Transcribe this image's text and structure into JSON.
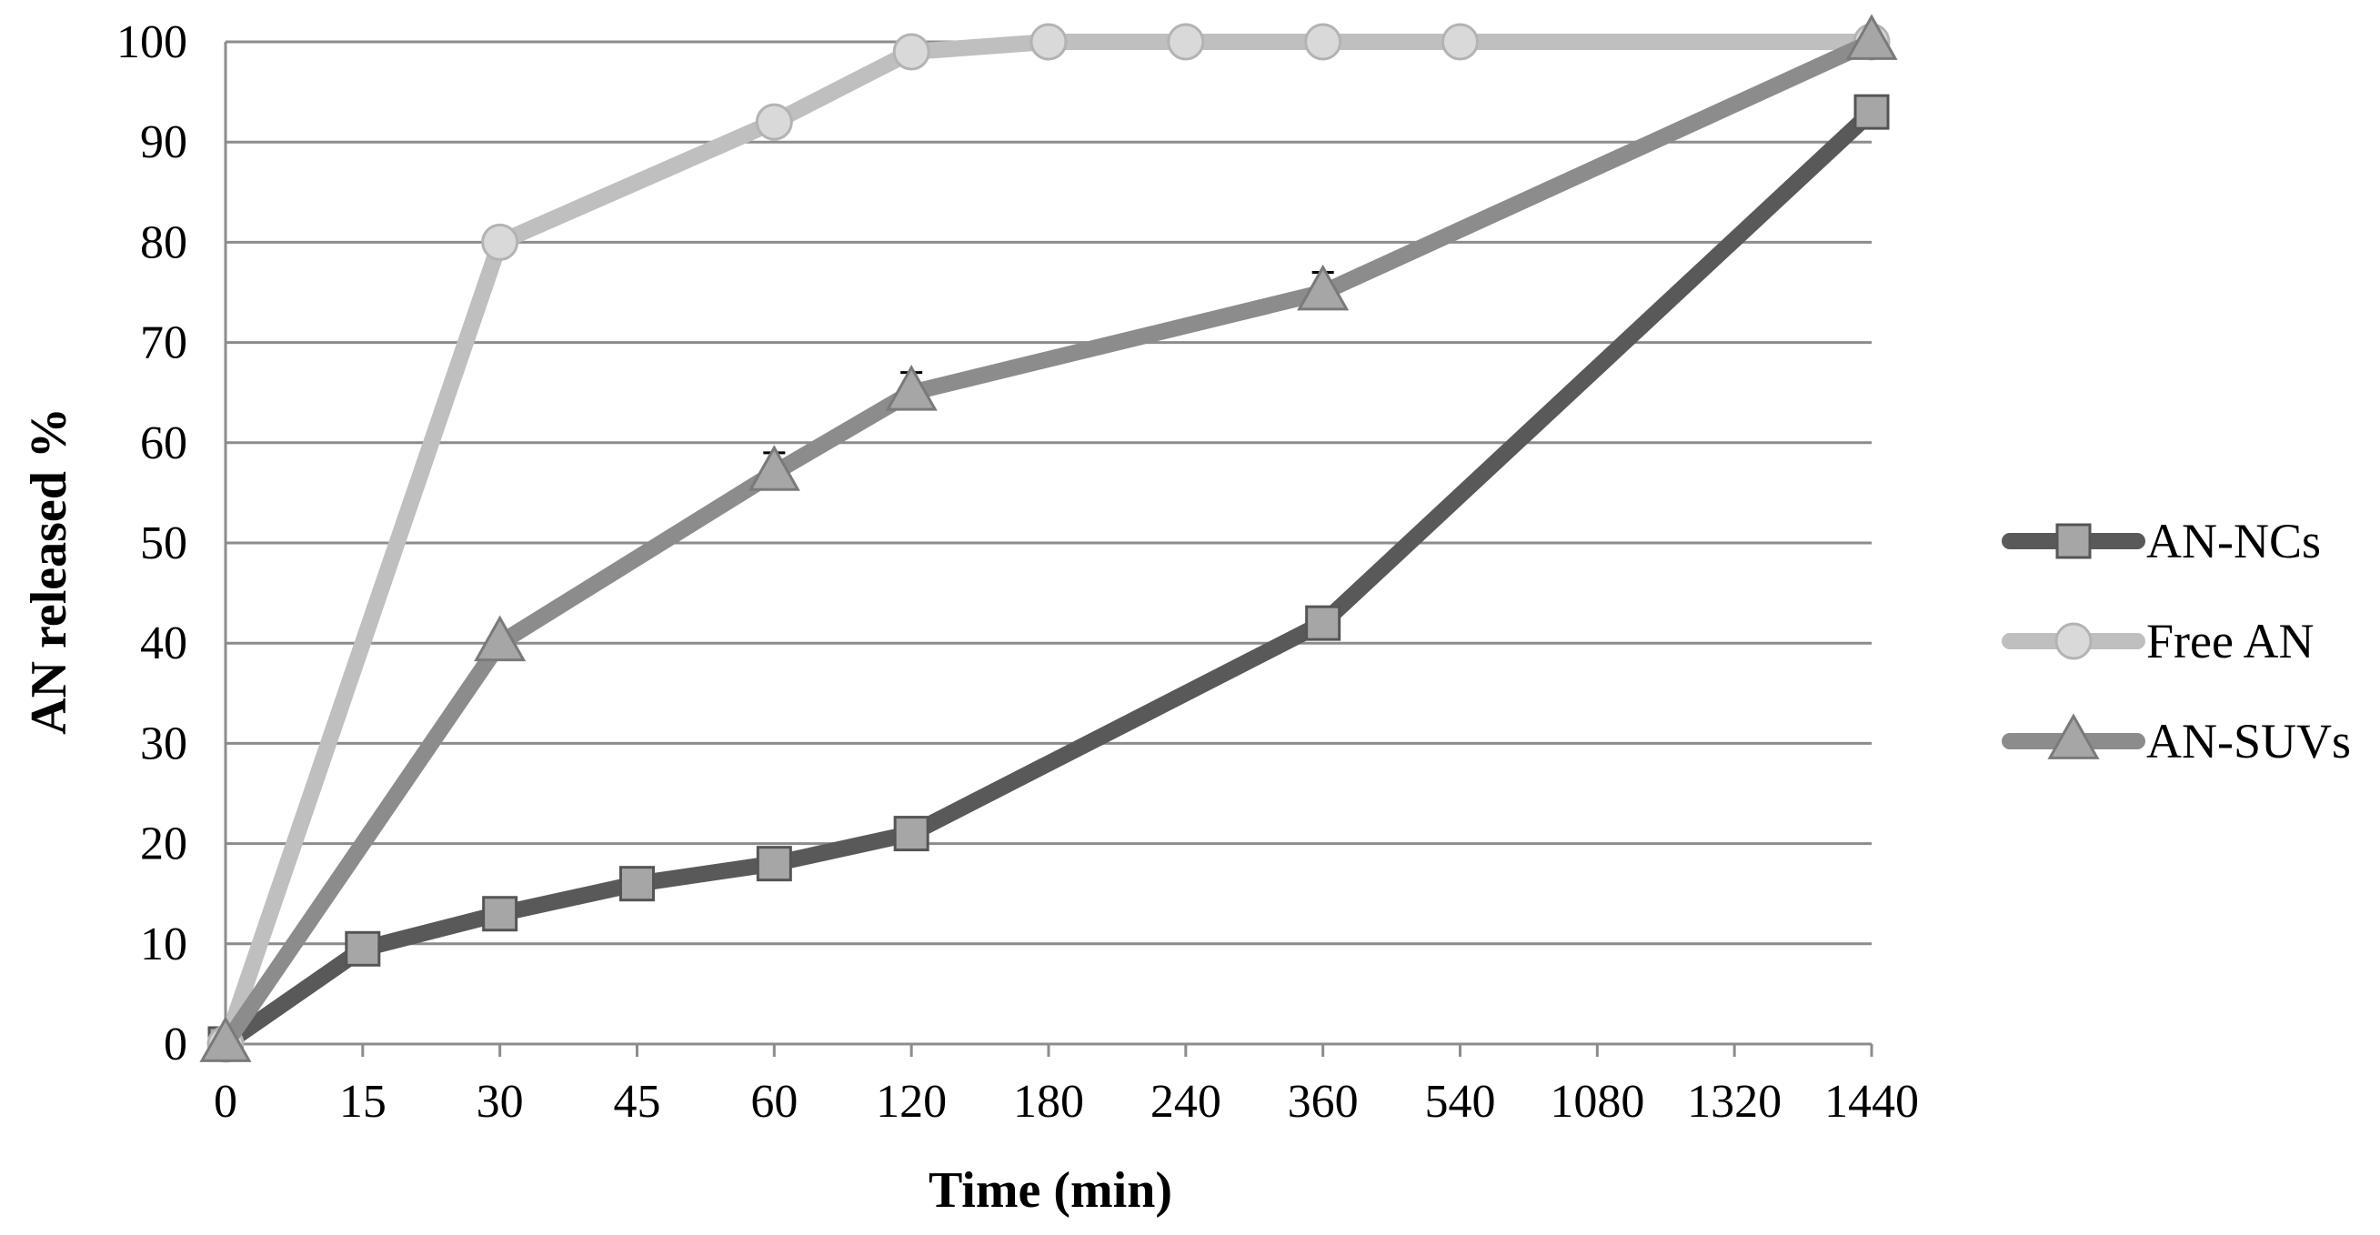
{
  "chart_data": {
    "type": "line",
    "title": "",
    "xlabel": "Time (min)",
    "ylabel": "AN released %",
    "categories": [
      "0",
      "15",
      "30",
      "45",
      "60",
      "120",
      "180",
      "240",
      "360",
      "540",
      "1080",
      "1320",
      "1440"
    ],
    "ylim": [
      0,
      100
    ],
    "yticks": [
      "0",
      "10",
      "20",
      "30",
      "40",
      "50",
      "60",
      "70",
      "80",
      "90",
      "100"
    ],
    "grid": true,
    "legend_position": "right",
    "series": [
      {
        "name": "AN-NCs",
        "color": "#595959",
        "marker": "square",
        "points": [
          [
            0,
            0
          ],
          [
            1,
            9.5
          ],
          [
            2,
            13
          ],
          [
            3,
            16
          ],
          [
            4,
            18
          ],
          [
            5,
            21
          ],
          [
            8,
            42
          ],
          [
            12,
            93
          ]
        ]
      },
      {
        "name": "Free AN",
        "color": "#bfbfbf",
        "marker": "circle",
        "points": [
          [
            0,
            0
          ],
          [
            2,
            80
          ],
          [
            4,
            92
          ],
          [
            5,
            99
          ],
          [
            6,
            100
          ],
          [
            7,
            100
          ],
          [
            8,
            100
          ],
          [
            9,
            100
          ],
          [
            12,
            100
          ]
        ]
      },
      {
        "name": "AN-SUVs",
        "color": "#8c8c8c",
        "marker": "triangle",
        "points": [
          [
            0,
            0
          ],
          [
            2,
            40
          ],
          [
            4,
            57
          ],
          [
            5,
            65
          ],
          [
            8,
            75
          ],
          [
            12,
            100
          ]
        ],
        "error_bars": [
          [
            4,
            2
          ],
          [
            5,
            2
          ],
          [
            8,
            2
          ]
        ]
      }
    ]
  }
}
